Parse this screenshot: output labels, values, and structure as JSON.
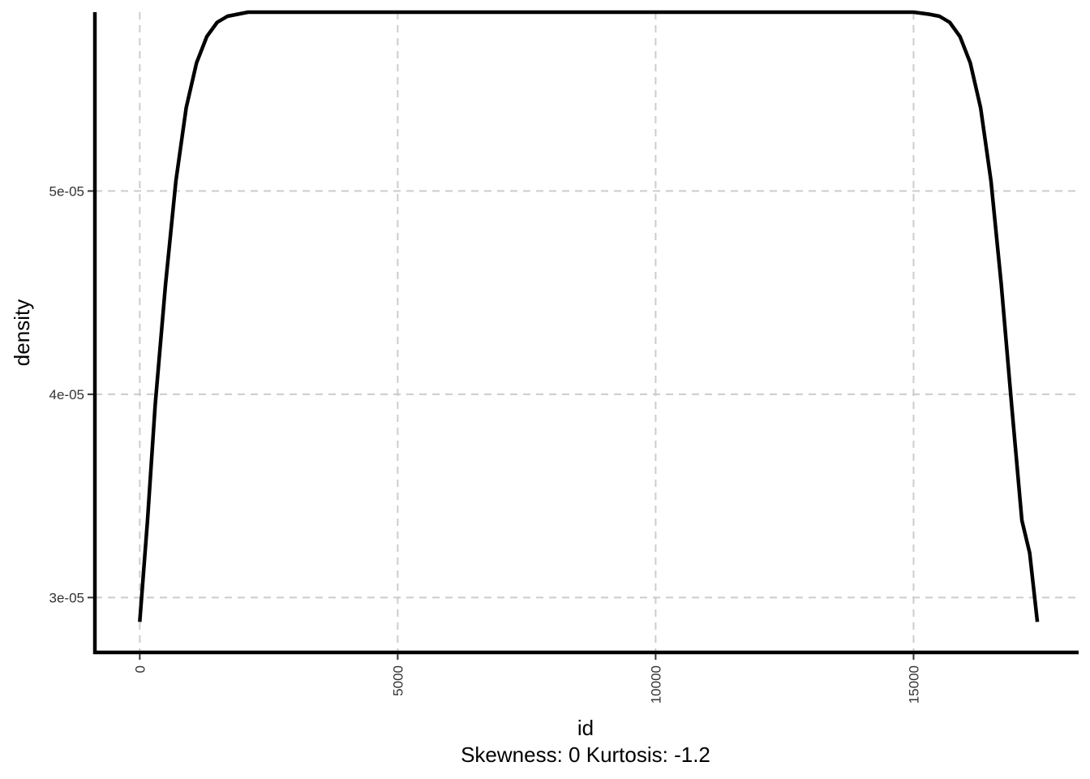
{
  "chart_data": {
    "type": "line",
    "title": "",
    "xlabel": "id",
    "ylabel": "density",
    "caption": "Skewness: 0 Kurtosis: -1.2",
    "xlim": [
      -870,
      18200
    ],
    "ylim": [
      2.73e-05,
      5.88e-05
    ],
    "x_ticks": [
      0,
      5000,
      10000,
      15000
    ],
    "x_tick_labels": [
      "0",
      "5000",
      "10000",
      "15000"
    ],
    "y_ticks": [
      3e-05,
      4e-05,
      5e-05
    ],
    "y_tick_labels": [
      "3e-05",
      "4e-05",
      "5e-05"
    ],
    "grid": true,
    "legend": "none",
    "colors": {
      "line": "#000000",
      "grid": "#cccccc"
    },
    "series": [
      {
        "x": [
          0,
          150,
          300,
          500,
          700,
          900,
          1100,
          1300,
          1500,
          1700,
          1900,
          2100,
          2400,
          3000,
          5000,
          8700,
          13000,
          15000,
          15300,
          15500,
          15700,
          15900,
          16100,
          16300,
          16500,
          16700,
          16900,
          17100,
          17250,
          17400
        ],
        "values": [
          2.88e-05,
          3.38e-05,
          3.95e-05,
          4.54e-05,
          5.05e-05,
          5.41e-05,
          5.63e-05,
          5.76e-05,
          5.83e-05,
          5.86e-05,
          5.87e-05,
          5.88e-05,
          5.88e-05,
          5.88e-05,
          5.88e-05,
          5.88e-05,
          5.88e-05,
          5.88e-05,
          5.87e-05,
          5.86e-05,
          5.83e-05,
          5.76e-05,
          5.63e-05,
          5.41e-05,
          5.05e-05,
          4.54e-05,
          3.95e-05,
          3.38e-05,
          3.22e-05,
          2.88e-05
        ]
      }
    ]
  }
}
